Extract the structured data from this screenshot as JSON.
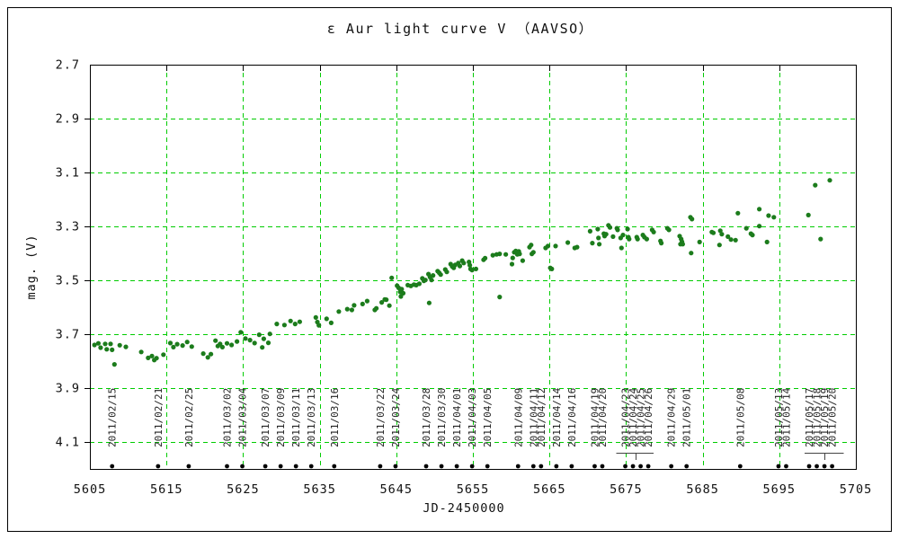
{
  "colors": {
    "grid": "#00cc00",
    "point": "#1c7c1c",
    "axis": "#000000",
    "date_marker": "#000000",
    "bracket": "#444444"
  },
  "chart_data": {
    "type": "scatter",
    "title": "ε Aur   light curve  V （AAVSO）",
    "xlabel": "JD-2450000",
    "ylabel": "mag. (V)",
    "xlim": [
      5605,
      5705
    ],
    "ylim": [
      2.7,
      4.2
    ],
    "y_axis_inverted_magnitude": true,
    "grid": true,
    "xticks": [
      5605,
      5615,
      5625,
      5635,
      5645,
      5655,
      5665,
      5675,
      5685,
      5695,
      5705
    ],
    "yticks": [
      2.7,
      2.9,
      3.1,
      3.3,
      3.5,
      3.7,
      3.9,
      4.1
    ],
    "points": [
      [
        5605.6,
        3.74
      ],
      [
        5606.1,
        3.734
      ],
      [
        5606.4,
        3.75
      ],
      [
        5607.0,
        3.736
      ],
      [
        5607.2,
        3.756
      ],
      [
        5607.7,
        3.736
      ],
      [
        5607.9,
        3.758
      ],
      [
        5608.2,
        3.812
      ],
      [
        5608.9,
        3.741
      ],
      [
        5609.7,
        3.747
      ],
      [
        5611.7,
        3.766
      ],
      [
        5612.6,
        3.788
      ],
      [
        5613.1,
        3.781
      ],
      [
        5613.4,
        3.796
      ],
      [
        5613.7,
        3.789
      ],
      [
        5614.6,
        3.776
      ],
      [
        5615.5,
        3.733
      ],
      [
        5615.9,
        3.748
      ],
      [
        5616.4,
        3.737
      ],
      [
        5617.1,
        3.742
      ],
      [
        5617.7,
        3.729
      ],
      [
        5618.3,
        3.746
      ],
      [
        5619.8,
        3.772
      ],
      [
        5620.4,
        3.786
      ],
      [
        5620.8,
        3.774
      ],
      [
        5621.4,
        3.724
      ],
      [
        5621.7,
        3.744
      ],
      [
        5622.0,
        3.736
      ],
      [
        5622.3,
        3.748
      ],
      [
        5622.9,
        3.734
      ],
      [
        5623.5,
        3.74
      ],
      [
        5624.2,
        3.727
      ],
      [
        5624.7,
        3.693
      ],
      [
        5625.3,
        3.716
      ],
      [
        5625.9,
        3.722
      ],
      [
        5626.5,
        3.733
      ],
      [
        5627.1,
        3.702
      ],
      [
        5627.5,
        3.749
      ],
      [
        5627.7,
        3.717
      ],
      [
        5628.3,
        3.732
      ],
      [
        5628.5,
        3.699
      ],
      [
        5629.4,
        3.662
      ],
      [
        5630.4,
        3.666
      ],
      [
        5631.2,
        3.651
      ],
      [
        5631.8,
        3.662
      ],
      [
        5632.4,
        3.654
      ],
      [
        5634.5,
        3.638
      ],
      [
        5634.7,
        3.655
      ],
      [
        5634.9,
        3.667
      ],
      [
        5635.9,
        3.643
      ],
      [
        5636.5,
        3.658
      ],
      [
        5637.5,
        3.616
      ],
      [
        5638.6,
        3.607
      ],
      [
        5639.2,
        3.61
      ],
      [
        5639.5,
        3.593
      ],
      [
        5640.6,
        3.588
      ],
      [
        5641.2,
        3.577
      ],
      [
        5642.2,
        3.61
      ],
      [
        5642.4,
        3.604
      ],
      [
        5643.1,
        3.582
      ],
      [
        5643.5,
        3.571
      ],
      [
        5643.7,
        3.572
      ],
      [
        5644.1,
        3.594
      ],
      [
        5644.4,
        3.491
      ],
      [
        5645.1,
        3.52
      ],
      [
        5645.3,
        3.528
      ],
      [
        5645.5,
        3.543
      ],
      [
        5645.6,
        3.56
      ],
      [
        5645.7,
        3.533
      ],
      [
        5645.9,
        3.548
      ],
      [
        5646.5,
        3.518
      ],
      [
        5646.9,
        3.521
      ],
      [
        5647.3,
        3.516
      ],
      [
        5647.6,
        3.518
      ],
      [
        5648.0,
        3.513
      ],
      [
        5648.4,
        3.493
      ],
      [
        5648.6,
        3.502
      ],
      [
        5648.8,
        3.499
      ],
      [
        5649.2,
        3.477
      ],
      [
        5649.3,
        3.584
      ],
      [
        5649.4,
        3.488
      ],
      [
        5649.6,
        3.499
      ],
      [
        5649.8,
        3.482
      ],
      [
        5650.4,
        3.466
      ],
      [
        5650.6,
        3.472
      ],
      [
        5650.8,
        3.479
      ],
      [
        5651.4,
        3.46
      ],
      [
        5651.6,
        3.469
      ],
      [
        5652.1,
        3.44
      ],
      [
        5652.3,
        3.449
      ],
      [
        5652.5,
        3.454
      ],
      [
        5652.7,
        3.443
      ],
      [
        5653.1,
        3.436
      ],
      [
        5653.3,
        3.447
      ],
      [
        5653.6,
        3.427
      ],
      [
        5653.8,
        3.436
      ],
      [
        5654.5,
        3.432
      ],
      [
        5654.6,
        3.444
      ],
      [
        5654.7,
        3.458
      ],
      [
        5654.9,
        3.462
      ],
      [
        5655.4,
        3.458
      ],
      [
        5656.4,
        3.424
      ],
      [
        5656.6,
        3.418
      ],
      [
        5657.6,
        3.407
      ],
      [
        5658.1,
        3.404
      ],
      [
        5658.5,
        3.402
      ],
      [
        5658.5,
        3.562
      ],
      [
        5659.3,
        3.404
      ],
      [
        5660.1,
        3.44
      ],
      [
        5660.2,
        3.417
      ],
      [
        5660.4,
        3.396
      ],
      [
        5660.6,
        3.391
      ],
      [
        5660.8,
        3.404
      ],
      [
        5661.0,
        3.393
      ],
      [
        5661.1,
        3.402
      ],
      [
        5661.5,
        3.427
      ],
      [
        5662.4,
        3.377
      ],
      [
        5662.6,
        3.369
      ],
      [
        5662.7,
        3.402
      ],
      [
        5662.9,
        3.396
      ],
      [
        5664.5,
        3.38
      ],
      [
        5664.8,
        3.373
      ],
      [
        5665.1,
        3.454
      ],
      [
        5665.3,
        3.458
      ],
      [
        5665.8,
        3.373
      ],
      [
        5667.4,
        3.36
      ],
      [
        5668.3,
        3.38
      ],
      [
        5668.6,
        3.377
      ],
      [
        5670.3,
        3.318
      ],
      [
        5670.6,
        3.362
      ],
      [
        5671.3,
        3.31
      ],
      [
        5671.4,
        3.343
      ],
      [
        5671.5,
        3.366
      ],
      [
        5672.1,
        3.327
      ],
      [
        5672.2,
        3.336
      ],
      [
        5672.4,
        3.329
      ],
      [
        5672.7,
        3.296
      ],
      [
        5672.9,
        3.304
      ],
      [
        5673.3,
        3.338
      ],
      [
        5673.8,
        3.307
      ],
      [
        5673.9,
        3.313
      ],
      [
        5674.3,
        3.343
      ],
      [
        5674.4,
        3.38
      ],
      [
        5674.6,
        3.332
      ],
      [
        5675.2,
        3.31
      ],
      [
        5675.3,
        3.34
      ],
      [
        5675.4,
        3.347
      ],
      [
        5676.4,
        3.34
      ],
      [
        5676.5,
        3.347
      ],
      [
        5677.2,
        3.332
      ],
      [
        5677.4,
        3.34
      ],
      [
        5677.7,
        3.347
      ],
      [
        5678.4,
        3.313
      ],
      [
        5678.6,
        3.321
      ],
      [
        5679.5,
        3.354
      ],
      [
        5679.6,
        3.362
      ],
      [
        5680.4,
        3.307
      ],
      [
        5680.6,
        3.313
      ],
      [
        5682.0,
        3.336
      ],
      [
        5682.1,
        3.366
      ],
      [
        5682.2,
        3.347
      ],
      [
        5682.3,
        3.357
      ],
      [
        5682.4,
        3.366
      ],
      [
        5683.4,
        3.266
      ],
      [
        5683.6,
        3.273
      ],
      [
        5683.5,
        3.399
      ],
      [
        5684.6,
        3.358
      ],
      [
        5686.2,
        3.321
      ],
      [
        5686.4,
        3.324
      ],
      [
        5687.2,
        3.369
      ],
      [
        5687.3,
        3.316
      ],
      [
        5687.5,
        3.329
      ],
      [
        5688.3,
        3.338
      ],
      [
        5688.7,
        3.349
      ],
      [
        5689.3,
        3.351
      ],
      [
        5689.6,
        3.251
      ],
      [
        5690.7,
        3.307
      ],
      [
        5691.3,
        3.327
      ],
      [
        5691.5,
        3.332
      ],
      [
        5692.4,
        3.236
      ],
      [
        5692.4,
        3.299
      ],
      [
        5693.4,
        3.358
      ],
      [
        5693.6,
        3.26
      ],
      [
        5694.3,
        3.266
      ],
      [
        5698.8,
        3.258
      ],
      [
        5699.7,
        3.147
      ],
      [
        5700.4,
        3.347
      ],
      [
        5701.6,
        3.129
      ]
    ],
    "date_markers": [
      {
        "label": "2011/02/15",
        "jd": 5607.9
      },
      {
        "label": "2011/02/21",
        "jd": 5613.9
      },
      {
        "label": "2011/02/25",
        "jd": 5617.9
      },
      {
        "label": "2011/03/02",
        "jd": 5622.9
      },
      {
        "label": "2011/03/04",
        "jd": 5624.9
      },
      {
        "label": "2011/03/07",
        "jd": 5627.9
      },
      {
        "label": "2011/03/09",
        "jd": 5629.9
      },
      {
        "label": "2011/03/11",
        "jd": 5631.9
      },
      {
        "label": "2011/03/13",
        "jd": 5633.9
      },
      {
        "label": "2011/03/16",
        "jd": 5636.9
      },
      {
        "label": "2011/03/22",
        "jd": 5642.9
      },
      {
        "label": "2011/03/24",
        "jd": 5644.9
      },
      {
        "label": "2011/03/28",
        "jd": 5648.9
      },
      {
        "label": "2011/03/30",
        "jd": 5650.9
      },
      {
        "label": "2011/04/01",
        "jd": 5652.9
      },
      {
        "label": "2011/04/03",
        "jd": 5654.9
      },
      {
        "label": "2011/04/05",
        "jd": 5656.9
      },
      {
        "label": "2011/04/09",
        "jd": 5660.9
      },
      {
        "label": "2011/04/11",
        "jd": 5662.9
      },
      {
        "label": "2011/04/12",
        "jd": 5663.9
      },
      {
        "label": "2011/04/14",
        "jd": 5665.9
      },
      {
        "label": "2011/04/16",
        "jd": 5667.9
      },
      {
        "label": "2011/04/19",
        "jd": 5670.9
      },
      {
        "label": "2011/04/20",
        "jd": 5671.9
      },
      {
        "label": "2011/04/23",
        "jd": 5674.9
      },
      {
        "label": "2011/04/24",
        "jd": 5675.9
      },
      {
        "label": "2011/04/25",
        "jd": 5676.9
      },
      {
        "label": "2011/04/26",
        "jd": 5677.9
      },
      {
        "label": "2011/04/29",
        "jd": 5680.9
      },
      {
        "label": "2011/05/01",
        "jd": 5682.9
      },
      {
        "label": "2011/05/08",
        "jd": 5689.9
      },
      {
        "label": "2011/05/13",
        "jd": 5694.9
      },
      {
        "label": "2011/05/14",
        "jd": 5695.9
      },
      {
        "label": "2011/05/17",
        "jd": 5698.9
      },
      {
        "label": "2011/05/18",
        "jd": 5699.9
      },
      {
        "label": "2011/05/19",
        "jd": 5700.9
      },
      {
        "label": "2011/05/20",
        "jd": 5701.9
      }
    ],
    "group_brackets": [
      {
        "from_jd": 5673.7,
        "to_jd": 5678.6,
        "stub_jd": 5676.2
      },
      {
        "from_jd": 5698.3,
        "to_jd": 5703.4,
        "stub_jd": 5700.9
      }
    ]
  }
}
